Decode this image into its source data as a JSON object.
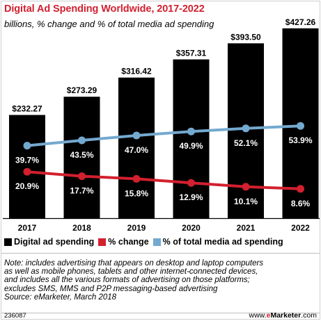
{
  "title": "Digital Ad Spending Worldwide, 2017-2022",
  "subtitle": "billions, % change and % of total media ad spending",
  "chart_data": {
    "type": "bar",
    "categories": [
      "2017",
      "2018",
      "2019",
      "2020",
      "2021",
      "2022"
    ],
    "series": [
      {
        "name": "Digital ad spending",
        "type": "bar",
        "color": "#000000",
        "values": [
          232.27,
          273.29,
          316.42,
          357.31,
          393.5,
          427.26
        ],
        "labels": [
          "$232.27",
          "$273.29",
          "$316.42",
          "$357.31",
          "$393.50",
          "$427.26"
        ]
      },
      {
        "name": "% change",
        "type": "line",
        "color": "#d2202f",
        "values": [
          20.9,
          17.7,
          15.8,
          12.9,
          10.1,
          8.6
        ],
        "labels": [
          "20.9%",
          "17.7%",
          "15.8%",
          "12.9%",
          "10.1%",
          "8.6%"
        ]
      },
      {
        "name": "% of total media ad spending",
        "type": "line",
        "color": "#74a9cf",
        "values": [
          39.7,
          43.5,
          47.0,
          49.9,
          52.1,
          53.9
        ],
        "labels": [
          "39.7%",
          "43.5%",
          "47.0%",
          "49.9%",
          "52.1%",
          "53.9%"
        ]
      }
    ],
    "legend_position": "bottom",
    "grid": false
  },
  "note": [
    "Note: includes advertising that appears on desktop and laptop computers",
    "as well as mobile phones, tablets and other internet-connected devices,",
    "and includes all the various formats of advertising on those platforms;",
    "excludes SMS, MMS and P2P messaging-based advertising"
  ],
  "source": "Source: eMarketer, March 2018",
  "footer": {
    "chart_id": "236087",
    "site_prefix": "www.",
    "site_e": "e",
    "site_brand": "Marketer",
    "site_suffix": ".com"
  }
}
